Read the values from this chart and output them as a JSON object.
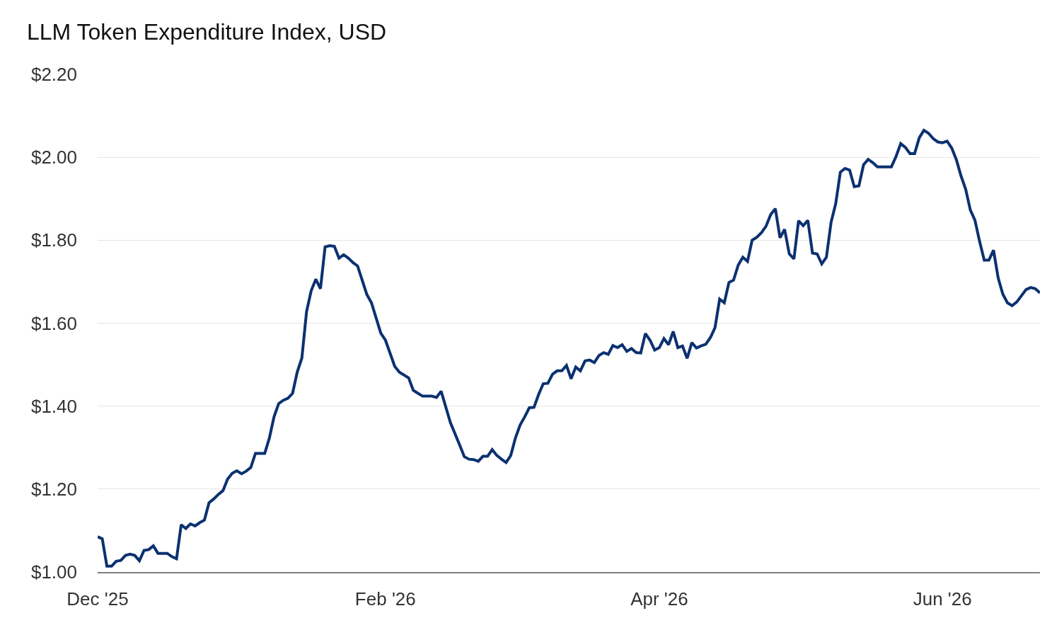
{
  "chart_data": {
    "type": "line",
    "title": "LLM Token Expenditure Index, USD",
    "x": [
      "2025-12-01",
      "2025-12-02",
      "2025-12-03",
      "2025-12-04",
      "2025-12-05",
      "2025-12-06",
      "2025-12-07",
      "2025-12-08",
      "2025-12-09",
      "2025-12-10",
      "2025-12-11",
      "2025-12-12",
      "2025-12-13",
      "2025-12-14",
      "2025-12-16",
      "2025-12-17",
      "2025-12-18",
      "2025-12-19",
      "2025-12-20",
      "2025-12-21",
      "2025-12-22",
      "2025-12-23",
      "2025-12-24",
      "2025-12-25",
      "2025-12-26",
      "2025-12-27",
      "2025-12-28",
      "2025-12-29",
      "2025-12-30",
      "2025-12-31",
      "2026-01-01",
      "2026-01-02",
      "2026-01-03",
      "2026-01-04",
      "2026-01-06",
      "2026-01-07",
      "2026-01-08",
      "2026-01-09",
      "2026-01-10",
      "2026-01-11",
      "2026-01-12",
      "2026-01-13",
      "2026-01-14",
      "2026-01-15",
      "2026-01-16",
      "2026-01-17",
      "2026-01-18",
      "2026-01-19",
      "2026-01-20",
      "2026-01-21",
      "2026-01-22",
      "2026-01-23",
      "2026-01-24",
      "2026-01-25",
      "2026-01-26",
      "2026-01-28",
      "2026-01-29",
      "2026-01-31",
      "2026-02-01",
      "2026-02-03",
      "2026-02-04",
      "2026-02-06",
      "2026-02-07",
      "2026-02-08",
      "2026-02-09",
      "2026-02-11",
      "2026-02-12",
      "2026-02-13",
      "2026-02-15",
      "2026-02-17",
      "2026-02-18",
      "2026-02-19",
      "2026-02-20",
      "2026-02-21",
      "2026-02-22",
      "2026-02-23",
      "2026-02-24",
      "2026-02-25",
      "2026-02-26",
      "2026-02-27",
      "2026-02-28",
      "2026-03-01",
      "2026-03-02",
      "2026-03-03",
      "2026-03-04",
      "2026-03-05",
      "2026-03-06",
      "2026-03-07",
      "2026-03-08",
      "2026-03-09",
      "2026-03-10",
      "2026-03-11",
      "2026-03-12",
      "2026-03-13",
      "2026-03-14",
      "2026-03-15",
      "2026-03-16",
      "2026-03-17",
      "2026-03-18",
      "2026-03-19",
      "2026-03-20",
      "2026-03-21",
      "2026-03-22",
      "2026-03-23",
      "2026-03-24",
      "2026-03-25",
      "2026-03-26",
      "2026-03-27",
      "2026-03-28",
      "2026-03-29",
      "2026-03-30",
      "2026-03-31",
      "2026-04-01",
      "2026-04-02",
      "2026-04-03",
      "2026-04-04",
      "2026-04-05",
      "2026-04-06",
      "2026-04-07",
      "2026-04-08",
      "2026-04-09",
      "2026-04-10",
      "2026-04-11",
      "2026-04-12",
      "2026-04-13",
      "2026-04-14",
      "2026-04-15",
      "2026-04-16",
      "2026-04-17",
      "2026-04-18",
      "2026-04-19",
      "2026-04-20",
      "2026-04-21",
      "2026-04-22",
      "2026-04-23",
      "2026-04-24",
      "2026-04-25",
      "2026-04-26",
      "2026-04-27",
      "2026-04-28",
      "2026-04-29",
      "2026-04-30",
      "2026-05-01",
      "2026-05-02",
      "2026-05-03",
      "2026-05-04",
      "2026-05-05",
      "2026-05-06",
      "2026-05-07",
      "2026-05-08",
      "2026-05-09",
      "2026-05-10",
      "2026-05-11",
      "2026-05-12",
      "2026-05-13",
      "2026-05-14",
      "2026-05-15",
      "2026-05-16",
      "2026-05-17",
      "2026-05-18",
      "2026-05-21",
      "2026-05-22",
      "2026-05-23",
      "2026-05-24",
      "2026-05-25",
      "2026-05-26",
      "2026-05-27",
      "2026-05-28",
      "2026-05-29",
      "2026-05-30",
      "2026-05-31",
      "2026-06-01",
      "2026-06-02",
      "2026-06-03",
      "2026-06-04",
      "2026-06-05",
      "2026-06-06",
      "2026-06-07",
      "2026-06-08",
      "2026-06-09",
      "2026-06-10",
      "2026-06-11",
      "2026-06-12",
      "2026-06-13",
      "2026-06-14",
      "2026-06-15",
      "2026-06-16",
      "2026-06-17",
      "2026-06-18",
      "2026-06-19",
      "2026-06-20",
      "2026-06-21",
      "2026-06-22"
    ],
    "series": [
      {
        "color": "#0b3170",
        "values": [
          1.085,
          1.08,
          1.014,
          1.014,
          1.026,
          1.028,
          1.04,
          1.043,
          1.04,
          1.027,
          1.052,
          1.054,
          1.063,
          1.045,
          1.045,
          1.037,
          1.032,
          1.114,
          1.105,
          1.116,
          1.111,
          1.119,
          1.125,
          1.167,
          1.176,
          1.187,
          1.196,
          1.224,
          1.238,
          1.244,
          1.237,
          1.243,
          1.252,
          1.286,
          1.286,
          1.323,
          1.374,
          1.406,
          1.414,
          1.419,
          1.431,
          1.482,
          1.516,
          1.627,
          1.678,
          1.706,
          1.683,
          1.784,
          1.787,
          1.785,
          1.757,
          1.765,
          1.757,
          1.746,
          1.738,
          1.669,
          1.649,
          1.576,
          1.559,
          1.496,
          1.482,
          1.468,
          1.438,
          1.431,
          1.424,
          1.424,
          1.421,
          1.436,
          1.36,
          1.306,
          1.278,
          1.272,
          1.271,
          1.267,
          1.279,
          1.279,
          1.295,
          1.281,
          1.272,
          1.264,
          1.281,
          1.323,
          1.354,
          1.374,
          1.396,
          1.397,
          1.428,
          1.454,
          1.455,
          1.477,
          1.485,
          1.485,
          1.498,
          1.466,
          1.494,
          1.485,
          1.509,
          1.511,
          1.505,
          1.522,
          1.529,
          1.525,
          1.546,
          1.541,
          1.548,
          1.532,
          1.539,
          1.529,
          1.528,
          1.575,
          1.559,
          1.535,
          1.541,
          1.563,
          1.548,
          1.58,
          1.541,
          1.545,
          1.515,
          1.553,
          1.54,
          1.545,
          1.549,
          1.565,
          1.589,
          1.658,
          1.649,
          1.698,
          1.704,
          1.74,
          1.759,
          1.749,
          1.8,
          1.807,
          1.818,
          1.834,
          1.862,
          1.876,
          1.806,
          1.826,
          1.767,
          1.755,
          1.847,
          1.835,
          1.848,
          1.769,
          1.767,
          1.743,
          1.759,
          1.843,
          1.888,
          1.964,
          1.973,
          1.969,
          1.929,
          1.931,
          1.982,
          1.995,
          1.987,
          1.977,
          1.977,
          2.002,
          2.033,
          2.024,
          2.009,
          2.009,
          2.047,
          2.065,
          2.058,
          2.045,
          2.037,
          2.035,
          2.039,
          2.022,
          1.994,
          1.955,
          1.923,
          1.873,
          1.848,
          1.797,
          1.752,
          1.752,
          1.776,
          1.709,
          1.67,
          1.649,
          1.642,
          1.651,
          1.666,
          1.681,
          1.686,
          1.683,
          1.673
        ]
      }
    ],
    "xlim": [
      "2025-12-01",
      "2026-06-22"
    ],
    "xticks": [
      {
        "value": "2025-12-01",
        "label": "Dec '25"
      },
      {
        "value": "2026-02-01",
        "label": "Feb '26"
      },
      {
        "value": "2026-04-01",
        "label": "Apr '26"
      },
      {
        "value": "2026-06-01",
        "label": "Jun '26"
      }
    ],
    "ylim": [
      1.0,
      2.2
    ],
    "yticks": [
      {
        "value": 1.0,
        "label": "$1.00"
      },
      {
        "value": 1.2,
        "label": "$1.20"
      },
      {
        "value": 1.4,
        "label": "$1.40"
      },
      {
        "value": 1.6,
        "label": "$1.60"
      },
      {
        "value": 1.8,
        "label": "$1.80"
      },
      {
        "value": 2.0,
        "label": "$2.00"
      },
      {
        "value": 2.2,
        "label": "$2.20"
      }
    ],
    "grid": "y",
    "marker": "none",
    "line_style": "solid"
  }
}
